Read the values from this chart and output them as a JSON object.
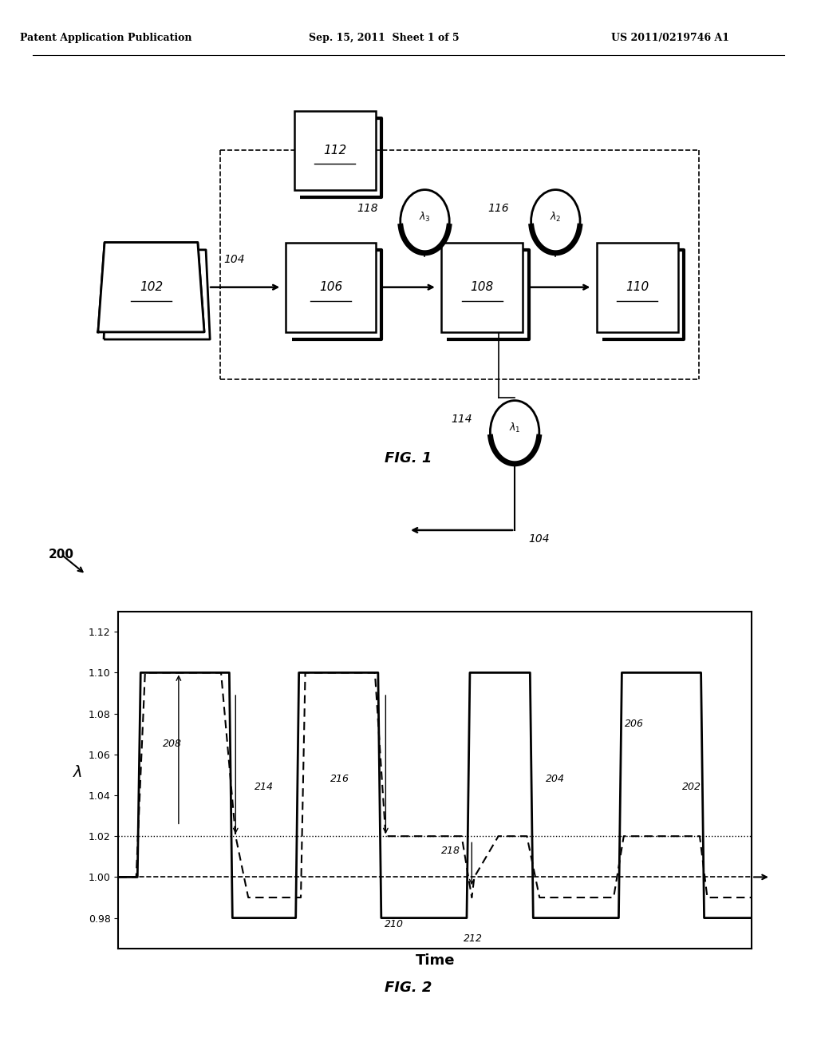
{
  "header_left": "Patent Application Publication",
  "header_mid": "Sep. 15, 2011  Sheet 1 of 5",
  "header_right": "US 2011/0219746 A1",
  "fig1_label": "FIG. 1",
  "fig2_label": "FIG. 2",
  "background_color": "#ffffff",
  "b102": [
    0.12,
    0.685,
    0.13,
    0.085
  ],
  "b106": [
    0.35,
    0.685,
    0.11,
    0.085
  ],
  "b108": [
    0.54,
    0.685,
    0.1,
    0.085
  ],
  "b110": [
    0.73,
    0.685,
    0.1,
    0.085
  ],
  "b112": [
    0.36,
    0.82,
    0.1,
    0.075
  ],
  "lam3": [
    0.52,
    0.79
  ],
  "lam2": [
    0.68,
    0.79
  ],
  "lam1": [
    0.63,
    0.59
  ],
  "r_circ": 0.03,
  "solid_t": [
    0,
    0.3,
    0.35,
    1.75,
    1.8,
    2.8,
    2.85,
    4.1,
    4.15,
    5.5,
    5.55,
    6.5,
    6.55,
    7.9,
    7.95,
    9.2,
    9.25,
    10
  ],
  "solid_v": [
    1.0,
    1.0,
    1.1,
    1.1,
    0.98,
    0.98,
    1.1,
    1.1,
    0.98,
    0.98,
    1.1,
    1.1,
    0.98,
    0.98,
    1.1,
    1.1,
    0.98,
    0.98
  ],
  "dashed_t": [
    0,
    0.28,
    0.42,
    1.62,
    1.85,
    2.05,
    2.88,
    2.95,
    4.05,
    4.22,
    5.42,
    5.58,
    5.62,
    6.0,
    6.45,
    6.65,
    7.82,
    7.98,
    9.18,
    9.3,
    10
  ],
  "dashed_v": [
    1.0,
    1.0,
    1.1,
    1.1,
    1.02,
    0.99,
    0.99,
    1.1,
    1.1,
    1.02,
    1.02,
    0.99,
    1.0,
    1.02,
    1.02,
    0.99,
    0.99,
    1.02,
    1.02,
    0.99,
    0.99
  ],
  "yticks": [
    0.98,
    1.0,
    1.02,
    1.04,
    1.06,
    1.08,
    1.1,
    1.12
  ],
  "ylim": [
    0.965,
    1.13
  ],
  "xlim": [
    0,
    10
  ]
}
